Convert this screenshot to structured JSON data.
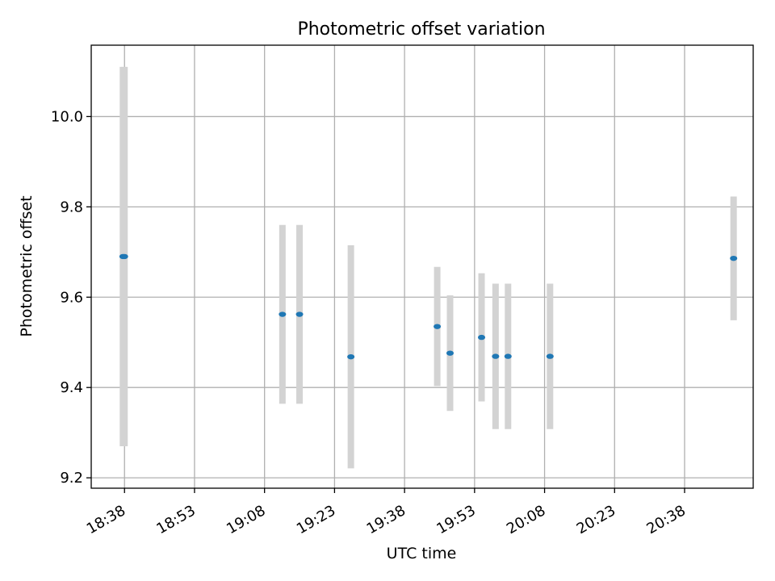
{
  "chart_data": {
    "type": "scatter",
    "title": "Photometric offset variation",
    "xlabel": "UTC time",
    "ylabel": "Photometric offset",
    "x_type": "time",
    "xlim": [
      "18:30:52",
      "20:52:42"
    ],
    "ylim": [
      9.177,
      10.158
    ],
    "x_ticks": [
      "18:38",
      "18:53",
      "19:08",
      "19:23",
      "19:38",
      "19:53",
      "20:08",
      "20:23",
      "20:38"
    ],
    "y_ticks": [
      9.2,
      9.4,
      9.6,
      9.8,
      10.0
    ],
    "y_tick_labels": [
      "9.2",
      "9.4",
      "9.6",
      "9.8",
      "10.0"
    ],
    "grid": true,
    "points": [
      {
        "x": "18:37:40",
        "y": 9.69,
        "yerr": 0.42
      },
      {
        "x": "18:38:00",
        "y": 9.69,
        "yerr": 0.42
      },
      {
        "x": "19:11:50",
        "y": 9.562,
        "yerr": 0.198
      },
      {
        "x": "19:15:30",
        "y": 9.562,
        "yerr": 0.198
      },
      {
        "x": "19:26:30",
        "y": 9.468,
        "yerr": 0.247
      },
      {
        "x": "19:45:00",
        "y": 9.535,
        "yerr": 0.132
      },
      {
        "x": "19:47:45",
        "y": 9.476,
        "yerr": 0.128
      },
      {
        "x": "19:54:30",
        "y": 9.511,
        "yerr": 0.142
      },
      {
        "x": "19:57:30",
        "y": 9.469,
        "yerr": 0.161
      },
      {
        "x": "20:00:10",
        "y": 9.469,
        "yerr": 0.161
      },
      {
        "x": "20:09:10",
        "y": 9.469,
        "yerr": 0.161
      },
      {
        "x": "20:48:30",
        "y": 9.686,
        "yerr": 0.137
      }
    ],
    "colors": {
      "marker": "#1f77b4",
      "errorbar": "#d3d3d3",
      "grid": "#b0b0b0",
      "axes": "#000000"
    }
  }
}
